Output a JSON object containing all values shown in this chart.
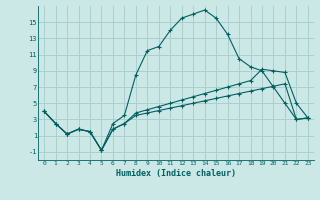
{
  "xlabel": "Humidex (Indice chaleur)",
  "bg_color": "#cce8e6",
  "grid_color": "#aacfcd",
  "line_color": "#006060",
  "x": [
    0,
    1,
    2,
    3,
    4,
    5,
    6,
    7,
    8,
    9,
    10,
    11,
    12,
    13,
    14,
    15,
    16,
    17,
    18,
    19,
    20,
    21,
    22,
    23
  ],
  "curve1": [
    4.0,
    2.5,
    1.2,
    1.8,
    1.5,
    -0.8,
    2.5,
    3.5,
    8.5,
    11.5,
    12.0,
    14.0,
    15.5,
    16.0,
    16.5,
    15.5,
    13.5,
    10.5,
    9.5,
    9.0,
    7.0,
    5.0,
    3.0,
    3.2
  ],
  "curve2": [
    4.0,
    2.5,
    1.2,
    1.8,
    1.5,
    -0.8,
    1.8,
    2.5,
    3.8,
    4.2,
    4.6,
    5.0,
    5.4,
    5.8,
    6.2,
    6.6,
    7.0,
    7.4,
    7.8,
    9.2,
    9.0,
    8.8,
    5.0,
    3.2
  ],
  "curve3": [
    4.0,
    2.5,
    1.2,
    1.8,
    1.5,
    -0.8,
    1.8,
    2.5,
    3.5,
    3.8,
    4.1,
    4.4,
    4.7,
    5.0,
    5.3,
    5.6,
    5.9,
    6.2,
    6.5,
    6.8,
    7.1,
    7.4,
    3.0,
    3.2
  ],
  "ylim": [
    -2,
    17
  ],
  "yticks": [
    -1,
    1,
    3,
    5,
    7,
    9,
    11,
    13,
    15
  ],
  "xlim": [
    -0.5,
    23.5
  ]
}
